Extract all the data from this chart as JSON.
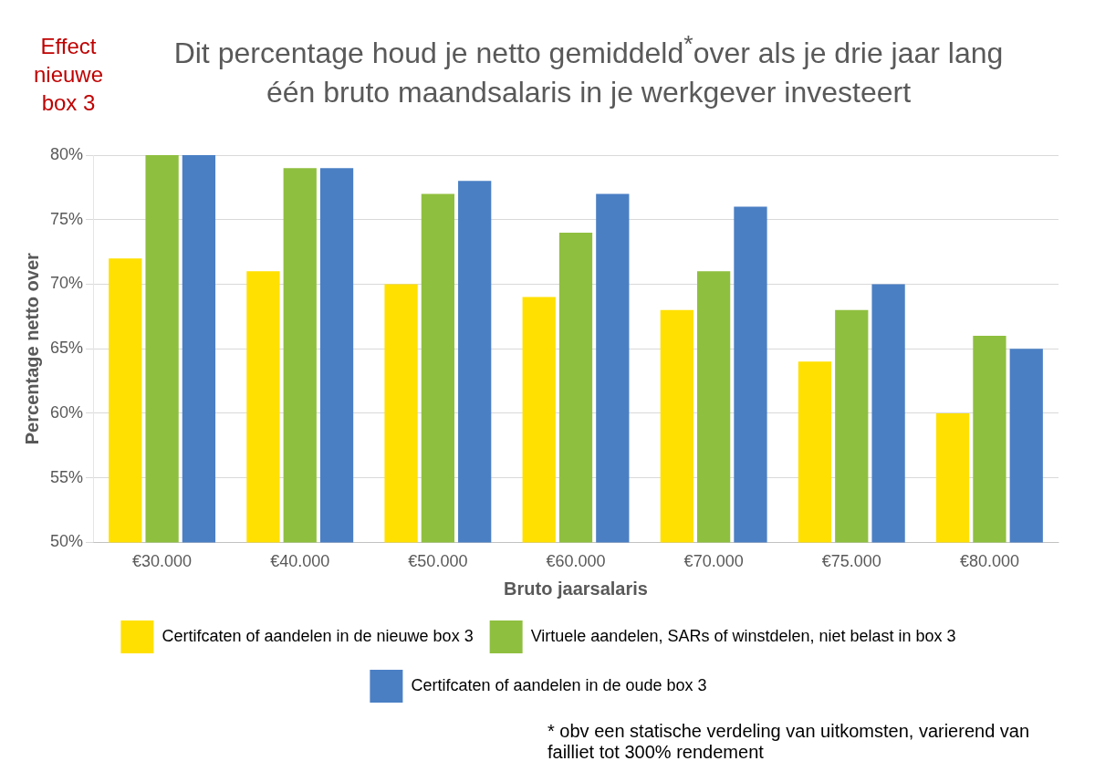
{
  "chart_data": {
    "type": "bar",
    "title": "Dit percentage houd je netto gemiddeld$^{*}$over als je drie jaar lang één bruto maandsalaris in je werkgever investeert",
    "xlabel": "Bruto jaarsalaris",
    "ylabel": "Percentage netto over",
    "categories": [
      "€30.000",
      "€40.000",
      "€50.000",
      "€60.000",
      "€70.000",
      "€75.000",
      "€80.000"
    ],
    "series": [
      {
        "name": "Certifcaten of aandelen in de nieuwe box 3",
        "color": "#ffe000",
        "values": [
          72,
          71,
          70,
          69,
          68,
          64,
          60
        ]
      },
      {
        "name": "Virtuele aandelen, SARs of winstdelen, niet belast in box 3",
        "color": "#8fbf3f",
        "values": [
          80,
          79,
          77,
          74,
          71,
          68,
          66
        ]
      },
      {
        "name": "Certifcaten of aandelen in de oude box 3",
        "color": "#4a7fc4",
        "values": [
          80,
          79,
          78,
          77,
          76,
          70,
          65
        ]
      }
    ],
    "ylim": [
      50,
      80
    ],
    "yticks": [
      {
        "value": 50,
        "label": "50%"
      },
      {
        "value": 55,
        "label": "55%"
      },
      {
        "value": 60,
        "label": "60%"
      },
      {
        "value": 65,
        "label": "65%"
      },
      {
        "value": 70,
        "label": "70%"
      },
      {
        "value": 75,
        "label": "75%"
      },
      {
        "value": 80,
        "label": "80%"
      }
    ],
    "grid": "y",
    "legend": "bottom",
    "annotations": [
      "Effect nieuwe box 3",
      "* obv een statische verdeling van uitkomsten, varierend van failliet tot 300% rendement"
    ]
  }
}
